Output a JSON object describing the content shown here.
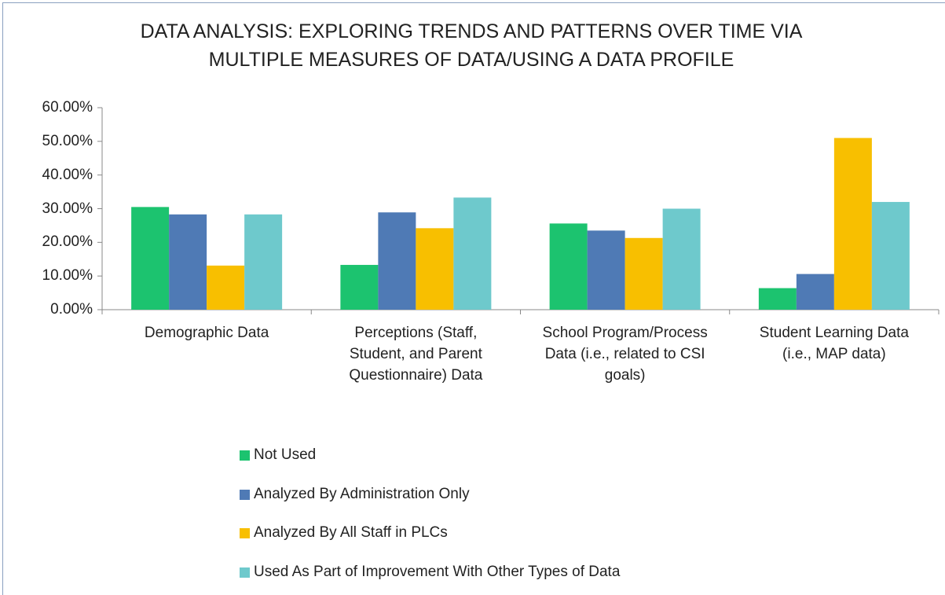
{
  "chart_data": {
    "type": "bar",
    "title": "DATA ANALYSIS: EXPLORING TRENDS AND PATTERNS OVER TIME VIA MULTIPLE MEASURES OF DATA/USING A DATA PROFILE",
    "categories": [
      "Demographic Data",
      "Perceptions (Staff, Student, and Parent Questionnaire) Data",
      "School Program/Process Data (i.e., related to CSI goals)",
      "Student Learning Data (i.e., MAP data)"
    ],
    "series": [
      {
        "name": "Not Used",
        "color": "#1cc36f",
        "values": [
          30.5,
          13.3,
          25.6,
          6.4
        ]
      },
      {
        "name": "Analyzed By Administration Only",
        "color": "#4f7ab5",
        "values": [
          28.3,
          28.9,
          23.5,
          10.6
        ]
      },
      {
        "name": "Analyzed By All Staff in PLCs",
        "color": "#f8bf00",
        "values": [
          13.1,
          24.2,
          21.3,
          51.0
        ]
      },
      {
        "name": "Used As Part of Improvement With Other Types of Data",
        "color": "#6ec9cc",
        "values": [
          28.3,
          33.3,
          30.0,
          32.0
        ]
      }
    ],
    "ylim": [
      0,
      60
    ],
    "yticks": [
      {
        "value": 0,
        "label": "0.00%"
      },
      {
        "value": 10,
        "label": "10.00%"
      },
      {
        "value": 20,
        "label": "20.00%"
      },
      {
        "value": 30,
        "label": "30.00%"
      },
      {
        "value": 40,
        "label": "40.00%"
      },
      {
        "value": 50,
        "label": "50.00%"
      },
      {
        "value": 60,
        "label": "60.00%"
      }
    ],
    "grid": false,
    "legend": "bottom"
  }
}
